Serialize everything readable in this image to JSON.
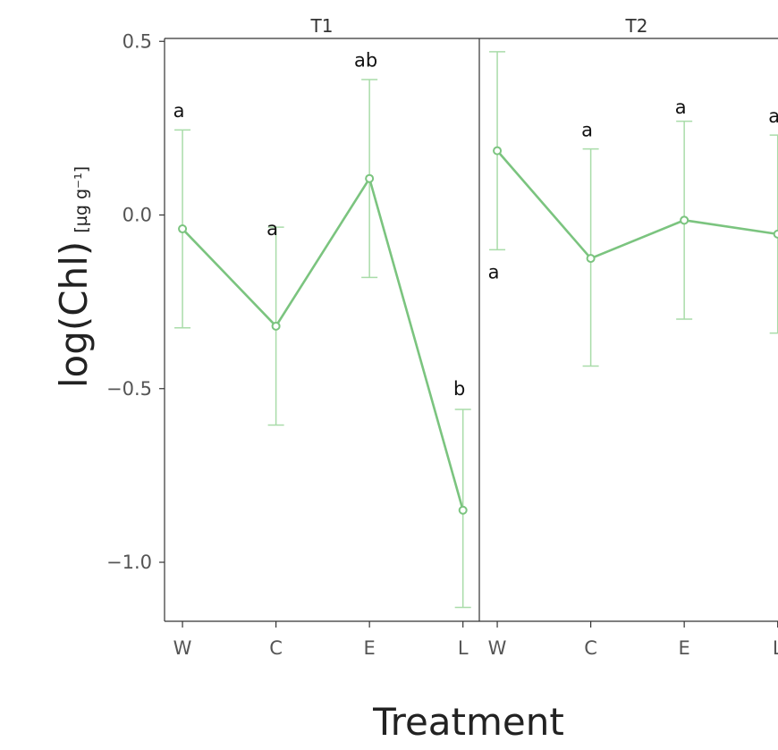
{
  "chart_data": {
    "type": "line",
    "xlabel": "Treatment",
    "ylabel": "log(Chl)",
    "ylabel_unit": "[µg g⁻¹]",
    "ylim": [
      -1.17,
      0.52
    ],
    "yticks": [
      0.5,
      0.0,
      -0.5,
      -1.0
    ],
    "ytick_labels": [
      "0.5",
      "0.0",
      "−0.5",
      "−1.0"
    ],
    "categories": [
      "W",
      "C",
      "E",
      "L"
    ],
    "grid": false,
    "legend": "none",
    "color": "#7bc47f",
    "error_color": "#a9dca9",
    "panels": [
      {
        "name": "T1",
        "values": [
          -0.04,
          -0.32,
          0.105,
          -0.85
        ],
        "lower": [
          -0.325,
          -0.605,
          -0.18,
          -1.13
        ],
        "upper": [
          0.245,
          -0.035,
          0.39,
          -0.56
        ],
        "letters": [
          "a",
          "a",
          "ab",
          "b"
        ],
        "letter_pos": [
          0.3,
          -0.04,
          0.445,
          -0.5
        ]
      },
      {
        "name": "T2",
        "values": [
          0.185,
          -0.125,
          -0.015,
          -0.055
        ],
        "lower": [
          -0.1,
          -0.435,
          -0.3,
          -0.34
        ],
        "upper": [
          0.47,
          0.19,
          0.27,
          0.23
        ],
        "letters": [
          "a",
          "a",
          "a",
          "a"
        ],
        "letter_pos": [
          -0.165,
          0.245,
          0.31,
          0.285
        ]
      }
    ]
  }
}
